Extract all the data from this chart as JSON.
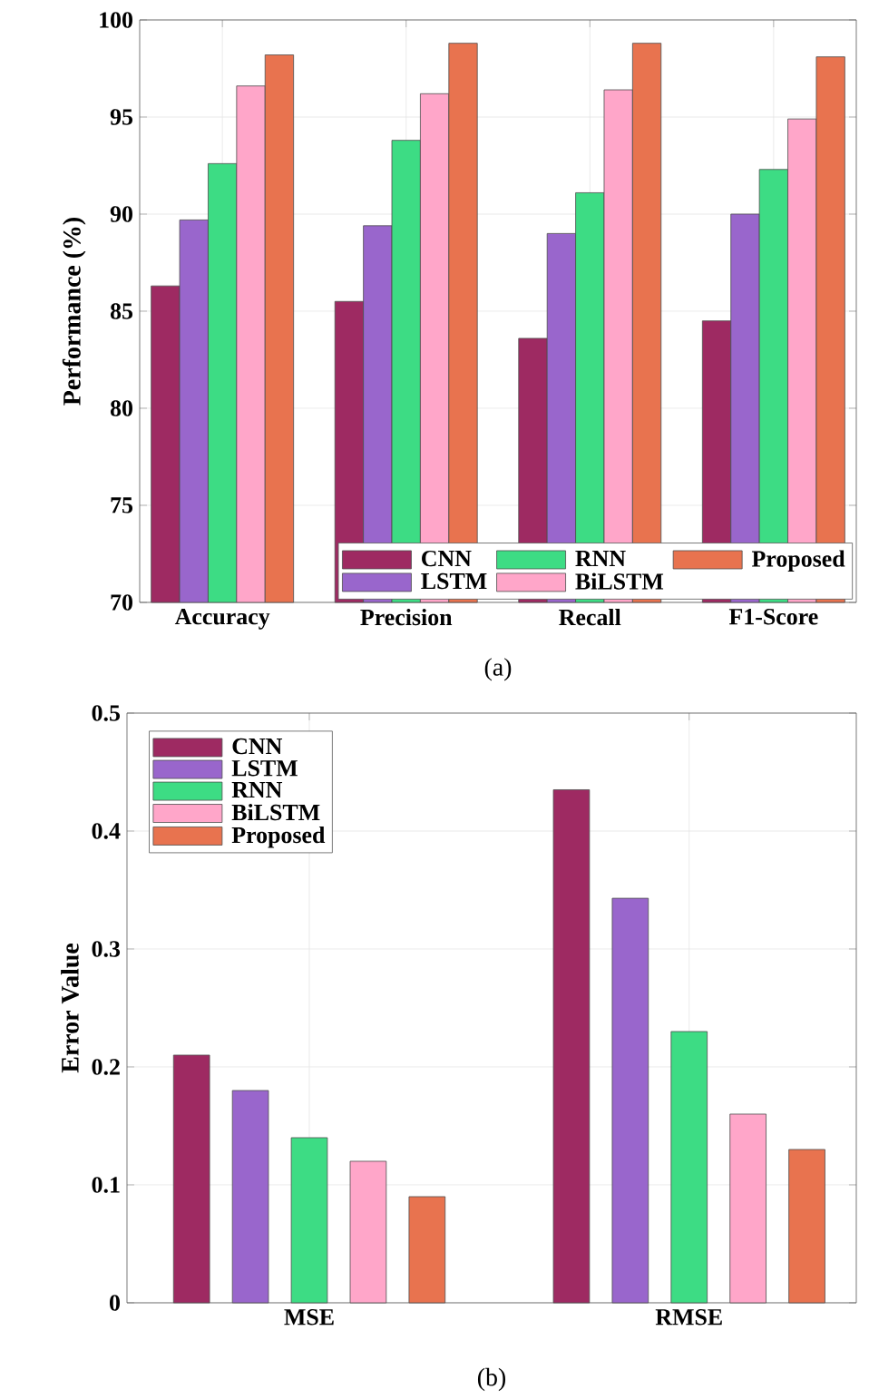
{
  "chart_data": [
    {
      "type": "bar",
      "ylabel": "Performance (%)",
      "categories": [
        "Accuracy",
        "Precision",
        "Recall",
        "F1-Score"
      ],
      "series": [
        {
          "name": "CNN",
          "color": "#9e2a62",
          "values": [
            86.3,
            85.5,
            83.6,
            84.5
          ]
        },
        {
          "name": "LSTM",
          "color": "#9966cc",
          "values": [
            89.7,
            89.4,
            89.0,
            90.0
          ]
        },
        {
          "name": "RNN",
          "color": "#3ddc84",
          "values": [
            92.6,
            93.8,
            91.1,
            92.3
          ]
        },
        {
          "name": "BiLSTM",
          "color": "#ffa6c9",
          "values": [
            96.6,
            96.2,
            96.4,
            94.9
          ]
        },
        {
          "name": "Proposed",
          "color": "#e8734f",
          "values": [
            98.2,
            98.8,
            98.8,
            98.1
          ]
        }
      ],
      "ylim": [
        70,
        100
      ],
      "yticks": [
        70,
        75,
        80,
        85,
        90,
        95,
        100
      ],
      "grid": true,
      "legend": "bottom right",
      "annotations": [
        "(a)"
      ]
    },
    {
      "type": "bar",
      "ylabel": "Error Value",
      "categories": [
        "MSE",
        "RMSE"
      ],
      "series": [
        {
          "name": "CNN",
          "color": "#9e2a62",
          "values": [
            0.21,
            0.435
          ]
        },
        {
          "name": "LSTM",
          "color": "#9966cc",
          "values": [
            0.18,
            0.343
          ]
        },
        {
          "name": "RNN",
          "color": "#3ddc84",
          "values": [
            0.14,
            0.23
          ]
        },
        {
          "name": "BiLSTM",
          "color": "#ffa6c9",
          "values": [
            0.12,
            0.16
          ]
        },
        {
          "name": "Proposed",
          "color": "#e8734f",
          "values": [
            0.09,
            0.13
          ]
        }
      ],
      "ylim": [
        0,
        0.5
      ],
      "yticks": [
        0,
        0.1,
        0.2,
        0.3,
        0.4,
        0.5
      ],
      "grid": true,
      "legend": "top left",
      "annotations": [
        "(b)"
      ]
    }
  ]
}
